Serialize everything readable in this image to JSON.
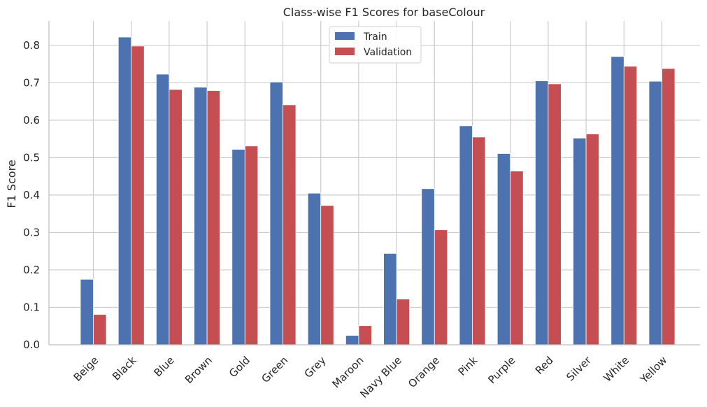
{
  "chart_data": {
    "type": "bar",
    "title": "Class-wise F1 Scores for baseColour",
    "xlabel": "",
    "ylabel": "F1 Score",
    "ylim": [
      0,
      0.865
    ],
    "yticks": [
      0.0,
      0.1,
      0.2,
      0.3,
      0.4,
      0.5,
      0.6,
      0.7,
      0.8
    ],
    "ytick_labels": [
      "0.0",
      "0.1",
      "0.2",
      "0.3",
      "0.4",
      "0.5",
      "0.6",
      "0.7",
      "0.8"
    ],
    "grid": true,
    "legend_position": "top-center",
    "categories": [
      "Beige",
      "Black",
      "Blue",
      "Brown",
      "Gold",
      "Green",
      "Grey",
      "Maroon",
      "Navy Blue",
      "Orange",
      "Pink",
      "Purple",
      "Red",
      "Silver",
      "White",
      "Yellow"
    ],
    "series": [
      {
        "name": "Train",
        "color": "#4c72b0",
        "values": [
          0.175,
          0.822,
          0.723,
          0.688,
          0.522,
          0.702,
          0.405,
          0.025,
          0.244,
          0.417,
          0.585,
          0.511,
          0.705,
          0.552,
          0.77,
          0.704
        ]
      },
      {
        "name": "Validation",
        "color": "#c44e52",
        "values": [
          0.081,
          0.798,
          0.682,
          0.679,
          0.531,
          0.641,
          0.372,
          0.051,
          0.122,
          0.307,
          0.555,
          0.464,
          0.697,
          0.563,
          0.744,
          0.738
        ]
      }
    ]
  }
}
